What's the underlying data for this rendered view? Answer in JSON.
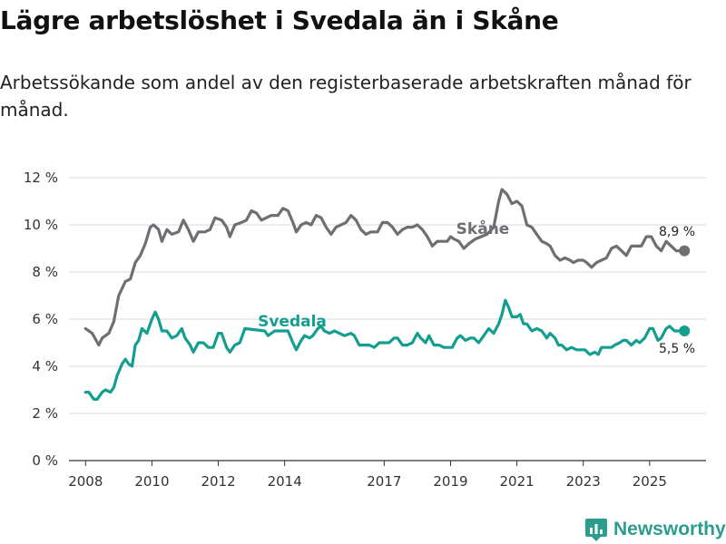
{
  "title": "Lägre arbetslöshet i Svedala än i Skåne",
  "subtitle": "Arbetssökande som andel av den registerbaserade arbetskraften månad för månad.",
  "brand": "Newsworthy",
  "colors": {
    "skane": "#6e6e73",
    "svedala": "#139e8f",
    "grid": "#d9d9d9",
    "brand": "#2a9d8f"
  },
  "chart_data": {
    "type": "line",
    "title": "Lägre arbetslöshet i Svedala än i Skåne",
    "xlabel": "",
    "ylabel": "",
    "ylim": [
      0,
      12
    ],
    "xlim": [
      2007.5,
      2026.7
    ],
    "y_ticks": [
      0,
      2,
      4,
      6,
      8,
      10,
      12
    ],
    "y_tick_labels": [
      "0 %",
      "2 %",
      "4 %",
      "6 %",
      "8 %",
      "10 %",
      "12 %"
    ],
    "x_ticks": [
      2008,
      2010,
      2012,
      2014,
      2017,
      2019,
      2021,
      2023,
      2025
    ],
    "x_tick_labels": [
      "2008",
      "2010",
      "2012",
      "2014",
      "2017",
      "2019",
      "2021",
      "2023",
      "2025"
    ],
    "series": [
      {
        "name": "Skåne",
        "key": "skane",
        "end_label": "8,9 %",
        "points": [
          [
            2008.0,
            5.6
          ],
          [
            2008.2,
            5.4
          ],
          [
            2008.4,
            4.9
          ],
          [
            2008.5,
            5.2
          ],
          [
            2008.7,
            5.4
          ],
          [
            2008.85,
            5.9
          ],
          [
            2009.0,
            7.0
          ],
          [
            2009.2,
            7.6
          ],
          [
            2009.35,
            7.7
          ],
          [
            2009.5,
            8.4
          ],
          [
            2009.65,
            8.7
          ],
          [
            2009.8,
            9.2
          ],
          [
            2009.95,
            9.9
          ],
          [
            2010.05,
            10.0
          ],
          [
            2010.2,
            9.8
          ],
          [
            2010.3,
            9.3
          ],
          [
            2010.45,
            9.8
          ],
          [
            2010.6,
            9.6
          ],
          [
            2010.8,
            9.7
          ],
          [
            2010.95,
            10.2
          ],
          [
            2011.1,
            9.8
          ],
          [
            2011.25,
            9.3
          ],
          [
            2011.4,
            9.7
          ],
          [
            2011.6,
            9.7
          ],
          [
            2011.75,
            9.8
          ],
          [
            2011.9,
            10.3
          ],
          [
            2012.1,
            10.2
          ],
          [
            2012.25,
            9.9
          ],
          [
            2012.35,
            9.5
          ],
          [
            2012.5,
            10.0
          ],
          [
            2012.7,
            10.1
          ],
          [
            2012.85,
            10.2
          ],
          [
            2013.0,
            10.6
          ],
          [
            2013.15,
            10.5
          ],
          [
            2013.3,
            10.2
          ],
          [
            2013.45,
            10.3
          ],
          [
            2013.6,
            10.4
          ],
          [
            2013.8,
            10.4
          ],
          [
            2013.95,
            10.7
          ],
          [
            2014.1,
            10.6
          ],
          [
            2014.25,
            10.1
          ],
          [
            2014.35,
            9.7
          ],
          [
            2014.5,
            10.0
          ],
          [
            2014.65,
            10.1
          ],
          [
            2014.8,
            10.0
          ],
          [
            2014.95,
            10.4
          ],
          [
            2015.1,
            10.3
          ],
          [
            2015.25,
            9.9
          ],
          [
            2015.4,
            9.6
          ],
          [
            2015.55,
            9.9
          ],
          [
            2015.7,
            10.0
          ],
          [
            2015.85,
            10.1
          ],
          [
            2016.0,
            10.4
          ],
          [
            2016.15,
            10.2
          ],
          [
            2016.3,
            9.8
          ],
          [
            2016.45,
            9.6
          ],
          [
            2016.6,
            9.7
          ],
          [
            2016.8,
            9.7
          ],
          [
            2016.95,
            10.1
          ],
          [
            2017.1,
            10.1
          ],
          [
            2017.25,
            9.9
          ],
          [
            2017.4,
            9.6
          ],
          [
            2017.55,
            9.8
          ],
          [
            2017.7,
            9.9
          ],
          [
            2017.85,
            9.9
          ],
          [
            2018.0,
            10.0
          ],
          [
            2018.15,
            9.8
          ],
          [
            2018.3,
            9.5
          ],
          [
            2018.45,
            9.1
          ],
          [
            2018.6,
            9.3
          ],
          [
            2018.75,
            9.3
          ],
          [
            2018.9,
            9.3
          ],
          [
            2019.0,
            9.5
          ],
          [
            2019.1,
            9.4
          ],
          [
            2019.25,
            9.3
          ],
          [
            2019.4,
            9.0
          ],
          [
            2019.55,
            9.2
          ],
          [
            2019.65,
            9.3
          ],
          [
            2019.75,
            9.4
          ],
          [
            2020.1,
            9.6
          ],
          [
            2020.3,
            9.9
          ],
          [
            2020.45,
            11.0
          ],
          [
            2020.55,
            11.5
          ],
          [
            2020.7,
            11.3
          ],
          [
            2020.85,
            10.9
          ],
          [
            2021.0,
            11.0
          ],
          [
            2021.15,
            10.8
          ],
          [
            2021.3,
            10.0
          ],
          [
            2021.45,
            9.9
          ],
          [
            2021.6,
            9.6
          ],
          [
            2021.75,
            9.3
          ],
          [
            2021.9,
            9.2
          ],
          [
            2022.0,
            9.1
          ],
          [
            2022.15,
            8.7
          ],
          [
            2022.3,
            8.5
          ],
          [
            2022.45,
            8.6
          ],
          [
            2022.6,
            8.5
          ],
          [
            2022.7,
            8.4
          ],
          [
            2022.85,
            8.5
          ],
          [
            2023.0,
            8.5
          ],
          [
            2023.1,
            8.4
          ],
          [
            2023.25,
            8.2
          ],
          [
            2023.4,
            8.4
          ],
          [
            2023.55,
            8.5
          ],
          [
            2023.7,
            8.6
          ],
          [
            2023.85,
            9.0
          ],
          [
            2024.0,
            9.1
          ],
          [
            2024.15,
            8.9
          ],
          [
            2024.3,
            8.7
          ],
          [
            2024.45,
            9.1
          ],
          [
            2024.6,
            9.1
          ],
          [
            2024.75,
            9.1
          ],
          [
            2024.9,
            9.5
          ],
          [
            2025.05,
            9.5
          ],
          [
            2025.2,
            9.1
          ],
          [
            2025.35,
            8.9
          ],
          [
            2025.5,
            9.3
          ],
          [
            2025.65,
            9.1
          ],
          [
            2025.8,
            8.9
          ],
          [
            2025.9,
            8.9
          ],
          [
            2026.05,
            8.9
          ]
        ]
      },
      {
        "name": "Svedala",
        "key": "svedala",
        "end_label": "5,5 %",
        "points": [
          [
            2008.0,
            2.9
          ],
          [
            2008.1,
            2.9
          ],
          [
            2008.25,
            2.6
          ],
          [
            2008.35,
            2.6
          ],
          [
            2008.5,
            2.9
          ],
          [
            2008.6,
            3.0
          ],
          [
            2008.75,
            2.9
          ],
          [
            2008.85,
            3.1
          ],
          [
            2008.95,
            3.6
          ],
          [
            2009.1,
            4.1
          ],
          [
            2009.2,
            4.3
          ],
          [
            2009.3,
            4.1
          ],
          [
            2009.4,
            4.0
          ],
          [
            2009.5,
            4.9
          ],
          [
            2009.6,
            5.1
          ],
          [
            2009.7,
            5.6
          ],
          [
            2009.85,
            5.4
          ],
          [
            2010.0,
            6.0
          ],
          [
            2010.1,
            6.3
          ],
          [
            2010.2,
            6.0
          ],
          [
            2010.3,
            5.5
          ],
          [
            2010.45,
            5.5
          ],
          [
            2010.6,
            5.2
          ],
          [
            2010.75,
            5.3
          ],
          [
            2010.9,
            5.6
          ],
          [
            2011.0,
            5.2
          ],
          [
            2011.15,
            4.9
          ],
          [
            2011.25,
            4.6
          ],
          [
            2011.4,
            5.0
          ],
          [
            2011.55,
            5.0
          ],
          [
            2011.7,
            4.8
          ],
          [
            2011.85,
            4.8
          ],
          [
            2012.0,
            5.4
          ],
          [
            2012.1,
            5.4
          ],
          [
            2012.25,
            4.8
          ],
          [
            2012.35,
            4.6
          ],
          [
            2012.5,
            4.9
          ],
          [
            2012.65,
            5.0
          ],
          [
            2012.8,
            5.6
          ],
          [
            2013.4,
            5.5
          ],
          [
            2013.5,
            5.3
          ],
          [
            2013.7,
            5.5
          ],
          [
            2014.1,
            5.5
          ],
          [
            2014.25,
            5.0
          ],
          [
            2014.35,
            4.7
          ],
          [
            2014.5,
            5.1
          ],
          [
            2014.6,
            5.3
          ],
          [
            2014.75,
            5.2
          ],
          [
            2014.85,
            5.3
          ],
          [
            2015.0,
            5.6
          ],
          [
            2015.1,
            5.7
          ],
          [
            2015.2,
            5.5
          ],
          [
            2015.35,
            5.4
          ],
          [
            2015.5,
            5.5
          ],
          [
            2015.65,
            5.4
          ],
          [
            2015.8,
            5.3
          ],
          [
            2016.0,
            5.4
          ],
          [
            2016.1,
            5.3
          ],
          [
            2016.25,
            4.9
          ],
          [
            2016.4,
            4.9
          ],
          [
            2016.55,
            4.9
          ],
          [
            2016.7,
            4.8
          ],
          [
            2016.85,
            5.0
          ],
          [
            2017.0,
            5.0
          ],
          [
            2017.15,
            5.0
          ],
          [
            2017.3,
            5.2
          ],
          [
            2017.4,
            5.2
          ],
          [
            2017.55,
            4.9
          ],
          [
            2017.7,
            4.9
          ],
          [
            2017.85,
            5.0
          ],
          [
            2018.0,
            5.4
          ],
          [
            2018.1,
            5.2
          ],
          [
            2018.25,
            5.0
          ],
          [
            2018.35,
            5.3
          ],
          [
            2018.5,
            4.9
          ],
          [
            2018.65,
            4.9
          ],
          [
            2018.8,
            4.8
          ],
          [
            2018.9,
            4.8
          ],
          [
            2019.05,
            4.8
          ],
          [
            2019.2,
            5.2
          ],
          [
            2019.3,
            5.3
          ],
          [
            2019.45,
            5.1
          ],
          [
            2019.6,
            5.2
          ],
          [
            2019.7,
            5.2
          ],
          [
            2019.85,
            5.0
          ],
          [
            2019.95,
            5.2
          ],
          [
            2020.05,
            5.4
          ],
          [
            2020.15,
            5.6
          ],
          [
            2020.3,
            5.4
          ],
          [
            2020.45,
            5.8
          ],
          [
            2020.55,
            6.2
          ],
          [
            2020.65,
            6.8
          ],
          [
            2020.75,
            6.5
          ],
          [
            2020.85,
            6.1
          ],
          [
            2021.0,
            6.1
          ],
          [
            2021.1,
            6.2
          ],
          [
            2021.2,
            5.8
          ],
          [
            2021.3,
            5.8
          ],
          [
            2021.45,
            5.5
          ],
          [
            2021.6,
            5.6
          ],
          [
            2021.75,
            5.5
          ],
          [
            2021.9,
            5.2
          ],
          [
            2022.0,
            5.4
          ],
          [
            2022.15,
            5.2
          ],
          [
            2022.25,
            4.9
          ],
          [
            2022.35,
            4.9
          ],
          [
            2022.5,
            4.7
          ],
          [
            2022.65,
            4.8
          ],
          [
            2022.8,
            4.7
          ],
          [
            2022.95,
            4.7
          ],
          [
            2023.05,
            4.7
          ],
          [
            2023.2,
            4.5
          ],
          [
            2023.35,
            4.6
          ],
          [
            2023.45,
            4.5
          ],
          [
            2023.55,
            4.8
          ],
          [
            2023.7,
            4.8
          ],
          [
            2023.85,
            4.8
          ],
          [
            2023.95,
            4.9
          ],
          [
            2024.1,
            5.0
          ],
          [
            2024.2,
            5.1
          ],
          [
            2024.3,
            5.1
          ],
          [
            2024.45,
            4.9
          ],
          [
            2024.6,
            5.1
          ],
          [
            2024.7,
            5.0
          ],
          [
            2024.85,
            5.2
          ],
          [
            2025.0,
            5.6
          ],
          [
            2025.1,
            5.6
          ],
          [
            2025.25,
            5.1
          ],
          [
            2025.35,
            5.2
          ],
          [
            2025.5,
            5.6
          ],
          [
            2025.6,
            5.7
          ],
          [
            2025.75,
            5.5
          ],
          [
            2025.85,
            5.5
          ],
          [
            2026.05,
            5.5
          ]
        ]
      }
    ]
  }
}
